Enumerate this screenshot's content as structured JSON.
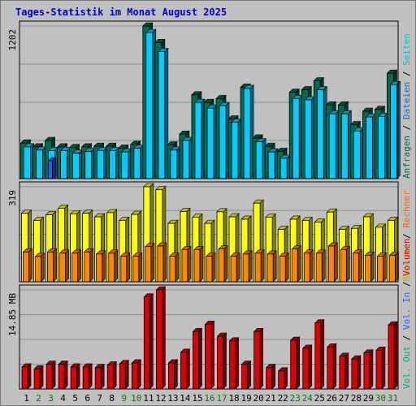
{
  "title": "Tages-Statistik im Monat August 2025",
  "colors": {
    "background": "#c0c0c0",
    "panel": "#c0c0c0",
    "grid": "#8c8c8c",
    "frame": "#000000",
    "title": "#0000cc",
    "weekday_label": "#000000",
    "weekend_label": "#007700",
    "anfragen": "#006b4f",
    "dateien": "#00ccff",
    "seiten": "#00e5ff",
    "besuche": "#ffff00",
    "rechner": "#ff8800",
    "volumen": "#dd0000",
    "vol_in": "#2a5cff",
    "vol_out": "#00aa77"
  },
  "x_tick_labels": [
    "1",
    "2",
    "3",
    "4",
    "5",
    "6",
    "7",
    "8",
    "9",
    "10",
    "11",
    "12",
    "13",
    "14",
    "15",
    "16",
    "17",
    "18",
    "19",
    "20",
    "21",
    "22",
    "23",
    "24",
    "25",
    "26",
    "27",
    "28",
    "29",
    "30",
    "31"
  ],
  "weekend_days": [
    2,
    3,
    9,
    10,
    16,
    17,
    23,
    24,
    30,
    31
  ],
  "right_legend": {
    "top": [
      {
        "text": "Anfragen",
        "color": "#006b4f"
      },
      {
        "text": "Dateien",
        "color": "#1565c0"
      },
      {
        "text": "Seiten",
        "color": "#00bcd4"
      }
    ],
    "middle": [
      {
        "text": "Besuche",
        "color": "#c8b400"
      },
      {
        "text": "Rechner",
        "color": "#ff6600"
      }
    ],
    "bottom": [
      {
        "text": "Vol. Out",
        "color": "#00aa77"
      },
      {
        "text": "Vol. In",
        "color": "#2a5cff"
      },
      {
        "text": "Volumen",
        "color": "#dd0000"
      }
    ]
  },
  "chart_data": [
    {
      "type": "bar",
      "panel": "top",
      "ymax_label": "1202",
      "ylim": [
        0,
        1202
      ],
      "categories": [
        "1",
        "2",
        "3",
        "4",
        "5",
        "6",
        "7",
        "8",
        "9",
        "10",
        "11",
        "12",
        "13",
        "14",
        "15",
        "16",
        "17",
        "18",
        "19",
        "20",
        "21",
        "22",
        "23",
        "24",
        "25",
        "26",
        "27",
        "28",
        "29",
        "30",
        "31"
      ],
      "series": [
        {
          "name": "Anfragen",
          "values": [
            280,
            250,
            300,
            250,
            245,
            250,
            255,
            255,
            240,
            270,
            1202,
            1072,
            265,
            350,
            660,
            600,
            630,
            470,
            720,
            320,
            255,
            215,
            680,
            700,
            770,
            580,
            580,
            425,
            530,
            545,
            830
          ]
        },
        {
          "name": "Dateien",
          "values": [
            250,
            225,
            220,
            220,
            200,
            215,
            220,
            220,
            210,
            240,
            1150,
            1000,
            225,
            300,
            600,
            555,
            575,
            445,
            710,
            290,
            210,
            160,
            630,
            620,
            700,
            510,
            510,
            375,
            485,
            490,
            740
          ]
        },
        {
          "name": "Seiten",
          "values": [
            0,
            0,
            140,
            0,
            0,
            0,
            0,
            0,
            0,
            0,
            0,
            0,
            0,
            0,
            0,
            0,
            0,
            0,
            0,
            0,
            0,
            0,
            0,
            0,
            0,
            0,
            0,
            0,
            0,
            0,
            0
          ]
        }
      ]
    },
    {
      "type": "bar",
      "panel": "middle",
      "ymax_label": "319",
      "ylim": [
        0,
        319
      ],
      "categories": [
        "1",
        "2",
        "3",
        "4",
        "5",
        "6",
        "7",
        "8",
        "9",
        "10",
        "11",
        "12",
        "13",
        "14",
        "15",
        "16",
        "17",
        "18",
        "19",
        "20",
        "21",
        "22",
        "23",
        "24",
        "25",
        "26",
        "27",
        "28",
        "29",
        "30",
        "31"
      ],
      "series": [
        {
          "name": "Besuche",
          "values": [
            230,
            206,
            225,
            247,
            228,
            230,
            218,
            232,
            206,
            226,
            319,
            309,
            196,
            236,
            217,
            196,
            235,
            218,
            210,
            264,
            217,
            176,
            210,
            206,
            200,
            234,
            176,
            179,
            218,
            183,
            206
          ]
        },
        {
          "name": "Rechner",
          "values": [
            100,
            85,
            100,
            96,
            96,
            100,
            93,
            96,
            86,
            86,
            118,
            120,
            86,
            108,
            108,
            86,
            110,
            86,
            93,
            96,
            93,
            86,
            110,
            96,
            96,
            120,
            108,
            96,
            89,
            86,
            89
          ]
        }
      ]
    },
    {
      "type": "bar",
      "panel": "bottom",
      "ymax_label": "14.85 MB",
      "ylim": [
        0,
        14.85
      ],
      "categories": [
        "1",
        "2",
        "3",
        "4",
        "5",
        "6",
        "7",
        "8",
        "9",
        "10",
        "11",
        "12",
        "13",
        "14",
        "15",
        "16",
        "17",
        "18",
        "19",
        "20",
        "21",
        "22",
        "23",
        "24",
        "25",
        "26",
        "27",
        "28",
        "29",
        "30",
        "31"
      ],
      "series": [
        {
          "name": "Volumen",
          "values": [
            3.3,
            3.0,
            3.7,
            3.7,
            3.3,
            3.3,
            3.2,
            3.6,
            3.8,
            3.9,
            13.8,
            14.85,
            3.9,
            5.5,
            8.6,
            9.7,
            7.9,
            7.2,
            3.7,
            8.6,
            3.2,
            2.7,
            7.3,
            6.1,
            9.9,
            6.3,
            4.9,
            4.5,
            5.4,
            5.8,
            9.6
          ]
        }
      ]
    }
  ]
}
